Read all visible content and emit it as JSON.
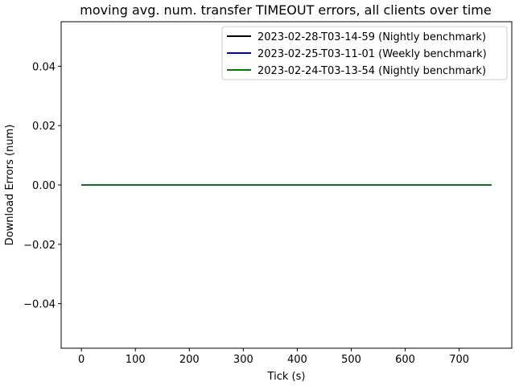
{
  "chart_data": {
    "type": "line",
    "title": "moving avg. num. transfer TIMEOUT errors, all clients over time",
    "xlabel": "Tick (s)",
    "ylabel": "Download Errors (num)",
    "xlim": [
      -37.5,
      797.5
    ],
    "ylim": [
      -0.055,
      0.055
    ],
    "xticks": [
      0,
      100,
      200,
      300,
      400,
      500,
      600,
      700
    ],
    "xtick_labels": [
      "0",
      "100",
      "200",
      "300",
      "400",
      "500",
      "600",
      "700"
    ],
    "yticks": [
      -0.04,
      -0.02,
      0.0,
      0.02,
      0.04
    ],
    "ytick_labels": [
      "−0.04",
      "−0.02",
      "0.00",
      "0.02",
      "0.04"
    ],
    "grid": false,
    "legend_position": "top-right",
    "series": [
      {
        "name": "2023-02-28-T03-14-59 (Nightly benchmark)",
        "color": "#000000",
        "x": [
          0,
          760
        ],
        "y": [
          0,
          0
        ]
      },
      {
        "name": "2023-02-25-T03-11-01 (Weekly benchmark)",
        "color": "#0000cc",
        "x": [
          0,
          760
        ],
        "y": [
          0,
          0
        ]
      },
      {
        "name": "2023-02-24-T03-13-54 (Nightly benchmark)",
        "color": "#008000",
        "x": [
          0,
          760
        ],
        "y": [
          0,
          0
        ]
      }
    ]
  }
}
